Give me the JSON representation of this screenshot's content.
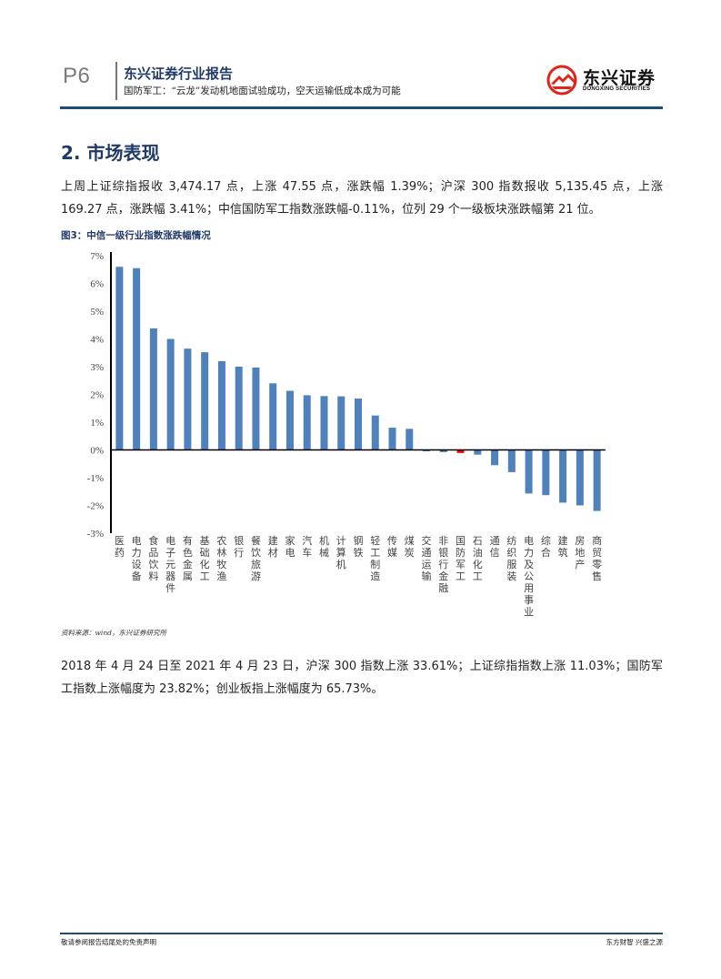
{
  "header": {
    "page_number": "P6",
    "brand_title": "东兴证券行业报告",
    "subtitle": "国防军工：“云龙”发动机地面试验成功，空天运输低成本成为可能",
    "logo_cn": "东兴证券",
    "logo_en": "DONGXING SECURITIES",
    "logo_icon": "dongxing-logo-icon",
    "accent_color": "#1d4b7a",
    "logo_color": "#e2231a"
  },
  "section": {
    "title": "2. 市场表现"
  },
  "paragraphs": {
    "p1": "上周上证综指报收 3,474.17 点，上涨 47.55 点，涨跌幅 1.39%；沪深 300 指数报收 5,135.45 点，上涨 169.27 点，涨跌幅 3.41%；中信国防军工指数涨跌幅-0.11%，位列 29 个一级板块涨跌幅第 21 位。",
    "p2": "2018 年 4 月 24 日至 2021 年 4 月 23 日，沪深 300 指数上涨 33.61%；上证综指指数上涨 11.03%；国防军工指数上涨幅度为 23.82%；创业板指上涨幅度为 65.73%。"
  },
  "figure": {
    "title": "图3：中信一级行业指数涨跌幅情况",
    "source": "资料来源：wind，东兴证券研究所"
  },
  "chart_data": {
    "type": "bar",
    "title": "中信一级行业指数涨跌幅情况",
    "xlabel": "",
    "ylabel": "",
    "ylim": [
      -3,
      7
    ],
    "yticks": [
      "7%",
      "6%",
      "5%",
      "4%",
      "3%",
      "2%",
      "1%",
      "0%",
      "-1%",
      "-2%",
      "-3%"
    ],
    "grid": false,
    "legend": "none",
    "bar_color": "#4f81bd",
    "highlight_color": "#ff0000",
    "highlight_category": "国防军工",
    "categories": [
      "医药",
      "电力设备",
      "食品饮料",
      "电子元器件",
      "有色金属",
      "基础化工",
      "农林牧渔",
      "银行",
      "餐饮旅游",
      "建材",
      "家电",
      "汽车",
      "机械",
      "计算机",
      "钢铁",
      "轻工制造",
      "传媒",
      "煤炭",
      "交通运输",
      "非银行金融",
      "国防军工",
      "石油化工",
      "通信",
      "纺织服装",
      "电力及公用事业",
      "综合",
      "建筑",
      "房地产",
      "商贸零售"
    ],
    "values": [
      6.6,
      6.55,
      4.38,
      4.0,
      3.65,
      3.52,
      3.2,
      3.0,
      2.97,
      2.4,
      2.13,
      1.97,
      1.94,
      1.93,
      1.85,
      1.24,
      0.8,
      0.76,
      -0.05,
      -0.08,
      -0.11,
      -0.17,
      -0.55,
      -0.8,
      -1.57,
      -1.63,
      -1.9,
      -2.0,
      -2.2
    ]
  },
  "footer": {
    "left": "敬请参阅报告结尾处的免责声明",
    "right": "东方财智 兴盛之源"
  }
}
